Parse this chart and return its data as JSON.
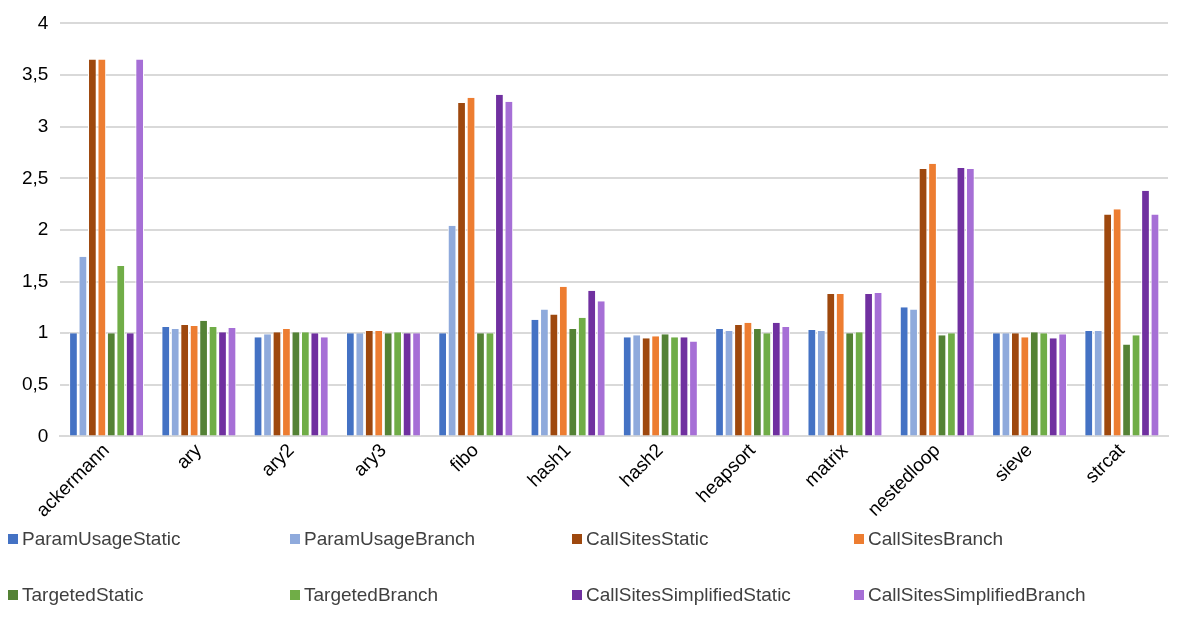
{
  "chart_data": {
    "type": "bar",
    "categories": [
      "ackermann",
      "ary",
      "ary2",
      "ary3",
      "fibo",
      "hash1",
      "hash2",
      "heapsort",
      "matrix",
      "nestedloop",
      "sieve",
      "strcat"
    ],
    "ylim": [
      0,
      4
    ],
    "yticks": [
      0,
      {
        "value": 0.5,
        "label": "0,5"
      },
      1,
      {
        "value": 1.5,
        "label": "1,5"
      },
      2,
      {
        "value": 2.5,
        "label": "2,5"
      },
      3,
      {
        "value": 3.5,
        "label": "3,5"
      },
      4
    ],
    "grid": "y",
    "legend": "bottom",
    "series": [
      {
        "name": "ParamUsageStatic",
        "color": "#4472c4",
        "values": [
          1.0,
          1.06,
          0.96,
          1.0,
          1.0,
          1.13,
          0.96,
          1.04,
          1.03,
          1.25,
          1.0,
          1.02
        ]
      },
      {
        "name": "ParamUsageBranch",
        "color": "#8faadc",
        "values": [
          1.74,
          1.04,
          0.99,
          1.0,
          2.04,
          1.23,
          0.98,
          1.02,
          1.02,
          1.23,
          1.0,
          1.02
        ]
      },
      {
        "name": "CallSitesStatic",
        "color": "#9e480e",
        "values": [
          3.65,
          1.08,
          1.01,
          1.02,
          3.23,
          1.18,
          0.95,
          1.08,
          1.38,
          2.59,
          1.0,
          2.15
        ]
      },
      {
        "name": "CallSitesBranch",
        "color": "#ed7d31",
        "values": [
          3.65,
          1.07,
          1.04,
          1.02,
          3.28,
          1.45,
          0.97,
          1.1,
          1.38,
          2.64,
          0.96,
          2.2
        ]
      },
      {
        "name": "TargetedStatic",
        "color": "#548235",
        "values": [
          1.0,
          1.12,
          1.01,
          1.0,
          1.0,
          1.04,
          0.99,
          1.04,
          1.0,
          0.98,
          1.01,
          0.89
        ]
      },
      {
        "name": "TargetedBranch",
        "color": "#70ad47",
        "values": [
          1.65,
          1.06,
          1.01,
          1.01,
          1.0,
          1.15,
          0.96,
          1.0,
          1.01,
          1.0,
          1.0,
          0.98
        ]
      },
      {
        "name": "CallSitesSimplifiedStatic",
        "color": "#7030a0",
        "values": [
          1.0,
          1.01,
          1.0,
          1.0,
          3.31,
          1.41,
          0.96,
          1.1,
          1.38,
          2.6,
          0.95,
          2.38
        ]
      },
      {
        "name": "CallSitesSimplifiedBranch",
        "color": "#a66fd6",
        "values": [
          3.65,
          1.05,
          0.96,
          1.0,
          3.24,
          1.31,
          0.92,
          1.06,
          1.39,
          2.59,
          0.99,
          2.15
        ]
      }
    ]
  }
}
